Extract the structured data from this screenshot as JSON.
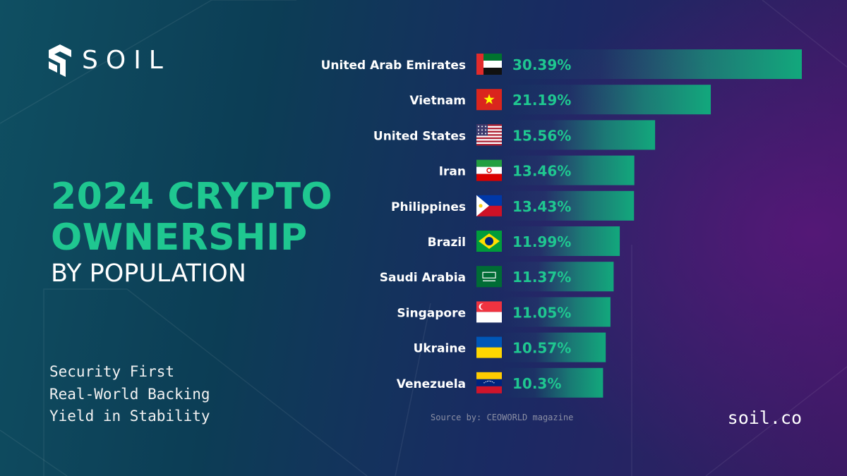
{
  "brand": {
    "name": "SOIL",
    "site": "soil.co"
  },
  "headline": {
    "line1": "2024 CRYPTO",
    "line2": "OWNERSHIP",
    "subline": "BY POPULATION"
  },
  "taglines": [
    "Security First",
    "Real-World Backing",
    "Yield in Stability"
  ],
  "source": "Source by: CEOWORLD magazine",
  "colors": {
    "accent": "#1fc790",
    "bar": "#12a87c",
    "text": "#ffffff"
  },
  "chart_data": {
    "type": "bar",
    "orientation": "horizontal",
    "title": "",
    "xlabel": "",
    "ylabel": "",
    "categories": [
      "United Arab Emirates",
      "Vietnam",
      "United States",
      "Iran",
      "Philippines",
      "Brazil",
      "Saudi Arabia",
      "Singapore",
      "Ukraine",
      "Venezuela"
    ],
    "values": [
      30.39,
      21.19,
      15.56,
      13.46,
      13.43,
      11.99,
      11.37,
      11.05,
      10.57,
      10.3
    ],
    "value_labels": [
      "30.39%",
      "21.19%",
      "15.56%",
      "13.46%",
      "13.43%",
      "11.99%",
      "11.37%",
      "11.05%",
      "10.57%",
      "10.3%"
    ],
    "flags": [
      "uae-flag-icon",
      "vietnam-flag-icon",
      "usa-flag-icon",
      "iran-flag-icon",
      "philippines-flag-icon",
      "brazil-flag-icon",
      "saudi-arabia-flag-icon",
      "singapore-flag-icon",
      "ukraine-flag-icon",
      "venezuela-flag-icon"
    ],
    "grid": false,
    "legend": "none"
  }
}
